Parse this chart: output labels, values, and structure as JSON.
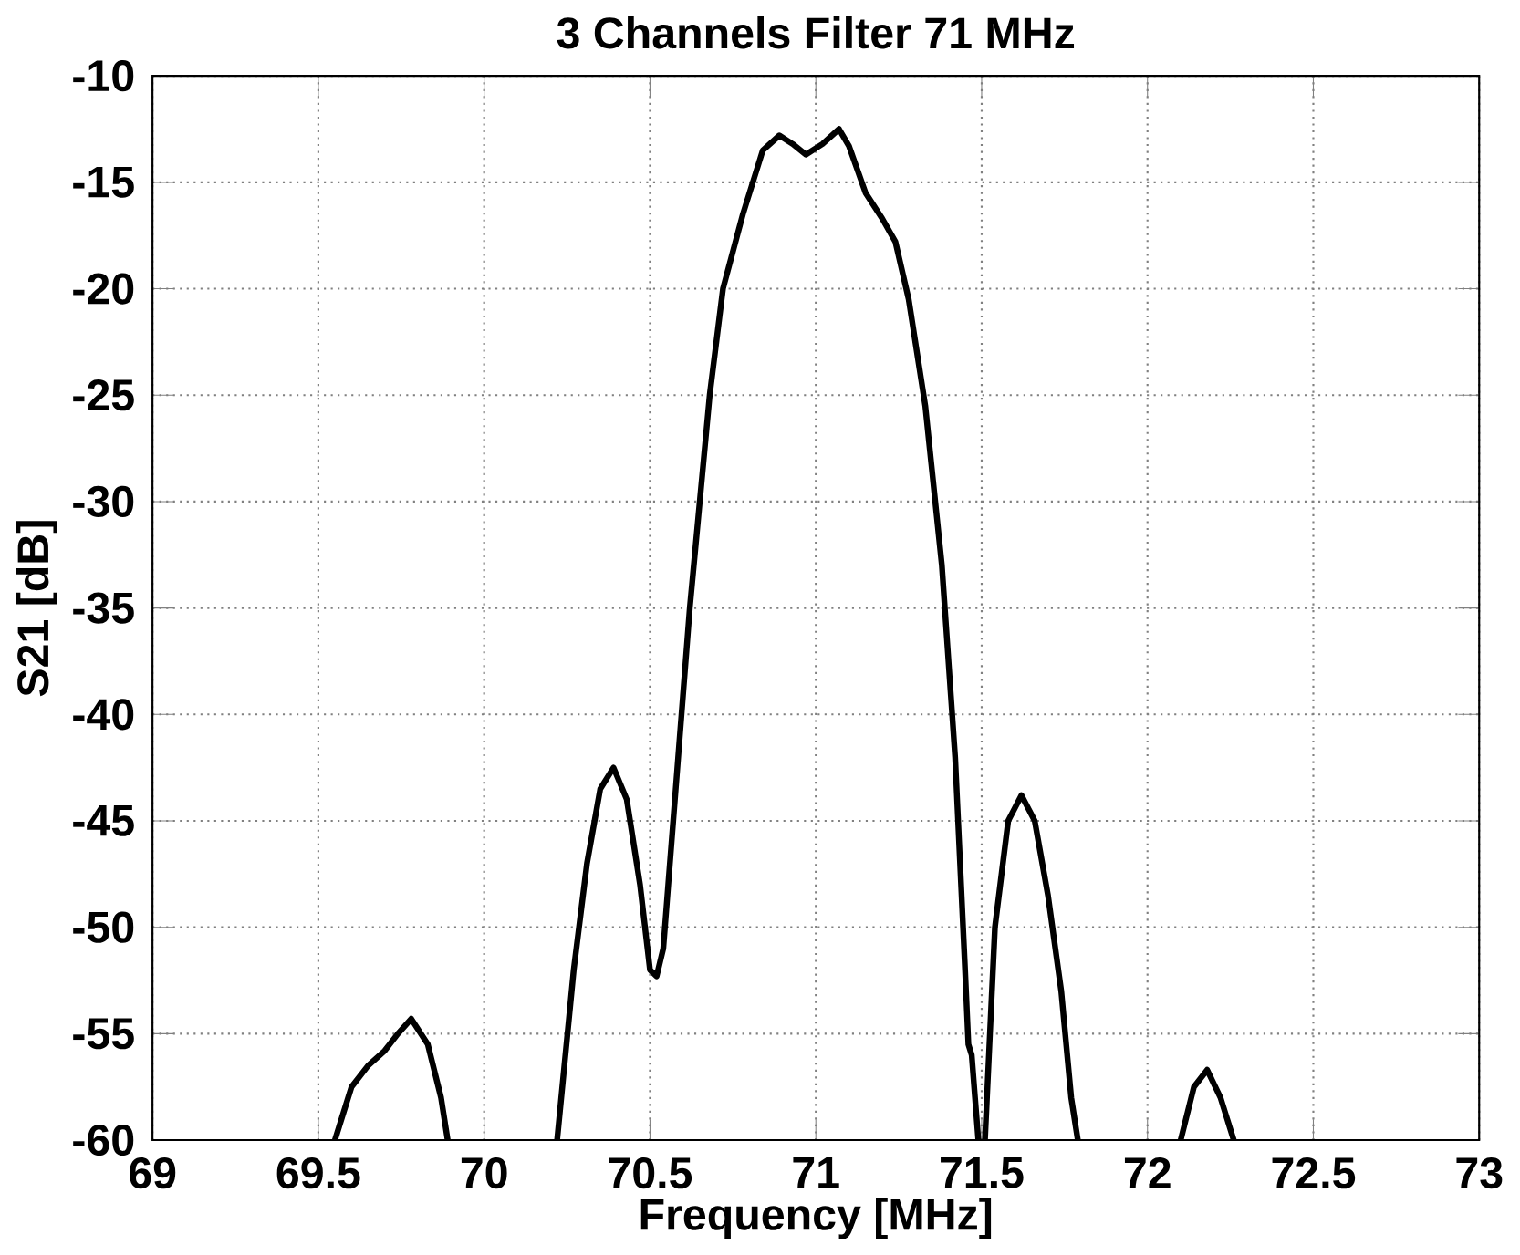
{
  "chart_data": {
    "type": "line",
    "title": "3 Channels Filter 71 MHz",
    "xlabel": "Frequency [MHz]",
    "ylabel": "S21 [dB]",
    "xlim": [
      69,
      73
    ],
    "ylim": [
      -60,
      -10
    ],
    "xticks": [
      69,
      69.5,
      70,
      70.5,
      71,
      71.5,
      72,
      72.5,
      73
    ],
    "yticks": [
      -60,
      -55,
      -50,
      -45,
      -40,
      -35,
      -30,
      -25,
      -20,
      -15,
      -10
    ],
    "grid": true,
    "marker": "none",
    "line_style": "solid",
    "series": [
      {
        "color": "#000000",
        "x": [
          69.55,
          69.6,
          69.65,
          69.7,
          69.74,
          69.78,
          69.83,
          69.87,
          69.89,
          69.9,
          70.22,
          70.27,
          70.31,
          70.35,
          70.39,
          70.43,
          70.47,
          70.5,
          70.52,
          70.54,
          70.57,
          70.62,
          70.68,
          70.72,
          70.78,
          70.84,
          70.89,
          70.93,
          70.97,
          71.02,
          71.07,
          71.1,
          71.15,
          71.2,
          71.24,
          71.28,
          71.33,
          71.38,
          71.42,
          71.45,
          71.46,
          71.47,
          71.48,
          71.49,
          71.5,
          71.51,
          71.54,
          71.58,
          71.62,
          71.66,
          71.7,
          71.74,
          71.77,
          71.79,
          71.9,
          72.1,
          72.14,
          72.18,
          72.22,
          72.26
        ],
        "values": [
          -60,
          -57.5,
          -56.5,
          -55.8,
          -55,
          -54.3,
          -55.5,
          -58,
          -60,
          null,
          -60,
          -52,
          -47,
          -43.5,
          -42.5,
          -44,
          -48,
          -52,
          -52.3,
          -51,
          -45,
          -35,
          -25,
          -20,
          -16.5,
          -13.5,
          -12.8,
          -13.2,
          -13.7,
          -13.2,
          -12.5,
          -13.3,
          -15.5,
          -16.7,
          -17.8,
          -20.5,
          -25.5,
          -33,
          -42,
          -52,
          -55.5,
          -56,
          -58,
          -60,
          null,
          -60,
          -50,
          -45,
          -43.8,
          -45,
          -48.5,
          -53,
          -58,
          -60,
          null,
          -60,
          -57.5,
          -56.7,
          -58,
          -60
        ]
      }
    ]
  }
}
